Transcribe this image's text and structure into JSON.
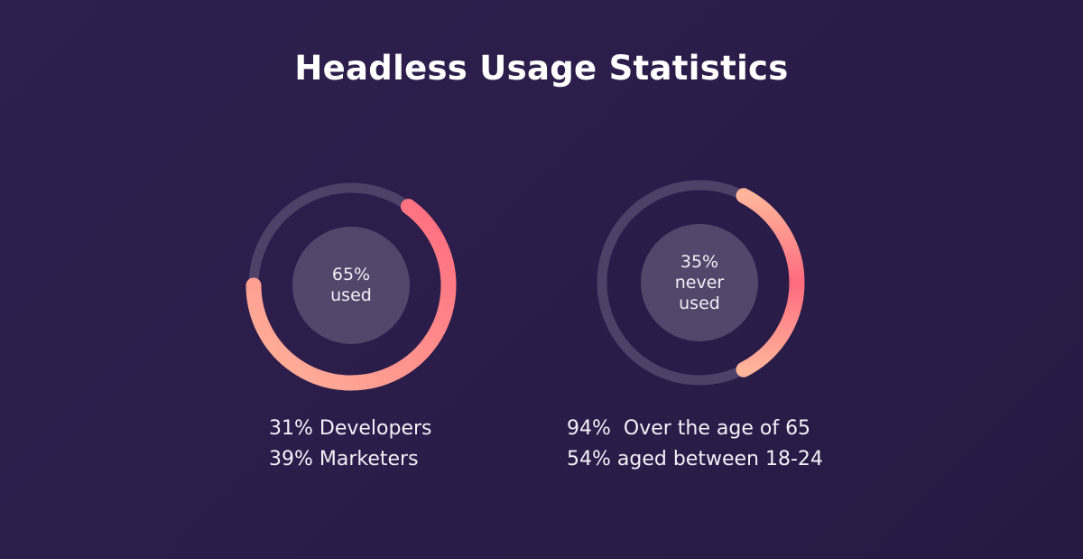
{
  "title": "Headless Usage Statistics",
  "chart_data": [
    {
      "type": "gauge",
      "values": [
        65
      ],
      "value_labels": [
        "65%"
      ],
      "center_label": "used",
      "ylim": [
        0,
        100
      ],
      "notes": [
        "31% Developers",
        "39% Marketers"
      ]
    },
    {
      "type": "gauge",
      "values": [
        35
      ],
      "value_labels": [
        "35%"
      ],
      "center_label": "never used",
      "ylim": [
        0,
        100
      ],
      "notes": [
        "94%  Over the age of 65",
        "54% aged between 18-24"
      ]
    }
  ]
}
